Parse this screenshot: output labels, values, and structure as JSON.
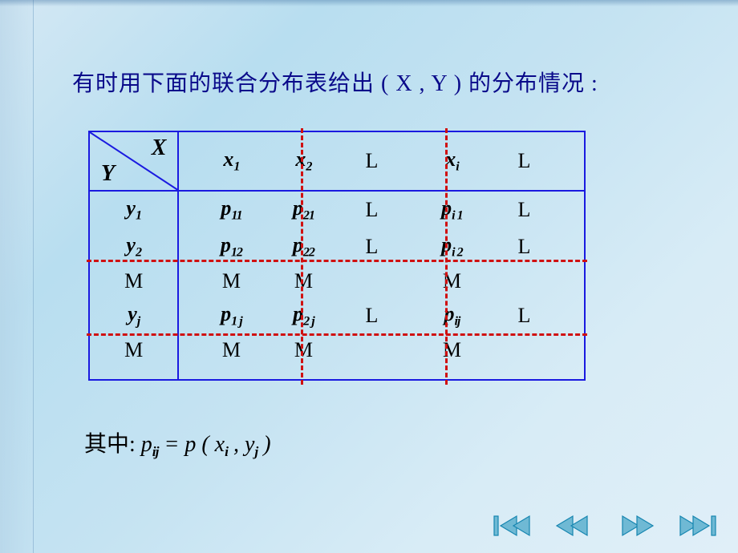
{
  "slide": {
    "background_gradient": [
      "#d4e8f4",
      "#b8def0",
      "#c5e3f2",
      "#d8ecf6",
      "#e0eff8"
    ],
    "title_color": "#0a0a8a",
    "title": "有时用下面的联合分布表给出 ( X , Y ) 的分布情况 :"
  },
  "table": {
    "border_color": "#1a1ae0",
    "dash_color": "#d01010",
    "header": {
      "x_label": "X",
      "y_label": "Y"
    },
    "x_headers": [
      "x₁",
      "x₂",
      "L",
      "xᵢ",
      "L"
    ],
    "y_headers": [
      "y₁",
      "y₂",
      "M",
      "yⱼ",
      "M"
    ],
    "x_raw": [
      {
        "base": "x",
        "sub": "1"
      },
      {
        "base": "x",
        "sub": "2"
      },
      {
        "type": "L"
      },
      {
        "base": "x",
        "sub": "i"
      },
      {
        "type": "L"
      }
    ],
    "y_raw": [
      {
        "base": "y",
        "sub": "1"
      },
      {
        "base": "y",
        "sub": "2"
      },
      {
        "type": "M"
      },
      {
        "base": "y",
        "sub": "j"
      },
      {
        "type": "M"
      }
    ],
    "cells": [
      [
        {
          "base": "p",
          "sub": "11"
        },
        {
          "base": "p",
          "sub": "21"
        },
        {
          "type": "L"
        },
        {
          "base": "p",
          "sub": "i 1"
        },
        {
          "type": "L"
        }
      ],
      [
        {
          "base": "p",
          "sub": "12"
        },
        {
          "base": "p",
          "sub": "22"
        },
        {
          "type": "L"
        },
        {
          "base": "p",
          "sub": "i 2"
        },
        {
          "type": "L"
        }
      ],
      [
        {
          "type": "M"
        },
        {
          "type": "M"
        },
        {
          "type": "blank"
        },
        {
          "type": "M"
        },
        {
          "type": "blank"
        }
      ],
      [
        {
          "base": "p",
          "sub": "1 j"
        },
        {
          "base": "p",
          "sub": "2 j"
        },
        {
          "type": "L"
        },
        {
          "base": "p",
          "sub": "ij"
        },
        {
          "type": "L"
        }
      ],
      [
        {
          "type": "M"
        },
        {
          "type": "M"
        },
        {
          "type": "blank"
        },
        {
          "type": "M"
        },
        {
          "type": "blank"
        }
      ]
    ],
    "dash_vertical_x": [
      375,
      555
    ],
    "dash_horizontal_y": [
      324,
      416
    ]
  },
  "footer": {
    "prefix": "其中:",
    "formula_html": "p<sub>ij</sub> = p ( x<sub>i</sub> , y<sub>j</sub> )"
  },
  "nav": {
    "fill": "#6fb9d4",
    "stroke": "#1585b0",
    "buttons": [
      "first",
      "prev",
      "next",
      "last"
    ]
  }
}
